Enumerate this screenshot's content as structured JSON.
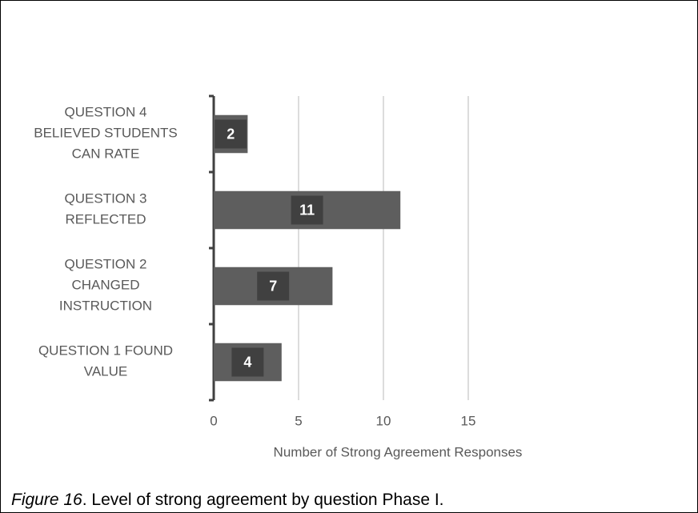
{
  "chart_data": {
    "type": "bar",
    "orientation": "horizontal",
    "categories": [
      "QUESTION 1 FOUND VALUE",
      "QUESTION 2 CHANGED INSTRUCTION",
      "QUESTION 3 REFLECTED",
      "QUESTION 4 BELIEVED STUDENTS CAN RATE"
    ],
    "values": [
      4,
      7,
      11,
      2
    ],
    "color": "#5e5e5e",
    "xlabel": "Number of Strong Agreement Responses",
    "xlim": [
      0,
      20
    ],
    "xticks": [
      0,
      5,
      10,
      15
    ],
    "grid": true
  },
  "caption": {
    "label": "Figure 16",
    "text": ". Level of strong agreement by question Phase I."
  }
}
